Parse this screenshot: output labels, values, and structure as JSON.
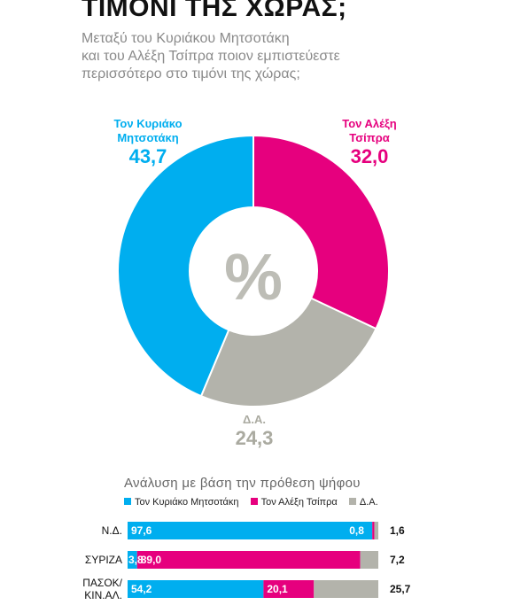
{
  "title": "ΤΙΜΟΝΙ ΤΗΣ ΧΩΡΑΣ;",
  "subtitle_lines": [
    "Μεταξύ του Κυριάκου Μητσοτάκη",
    "και του Αλέξη Τσίπρα ποιον εμπιστεύεστε",
    "περισσότερο στο τιμόνι της χώρας;"
  ],
  "donut": {
    "center_symbol": "%",
    "labels": {
      "k_line1": "Τον Κυριάκο",
      "k_line2": "Μητσοτάκη",
      "k_value": "43,7",
      "a_line1": "Τον Αλέξη",
      "a_line2": "Τσίπρα",
      "a_value": "32,0",
      "d_line1": "Δ.Α.",
      "d_value": "24,3"
    }
  },
  "breakdown": {
    "title": "Ανάλυση με βάση την πρόθεση ψήφου",
    "legend": [
      "Τον Κυριάκο Μητσοτάκη",
      "Τον Αλέξη Τσίπρα",
      "Δ.Α."
    ]
  },
  "colors": {
    "kyriakos": "#00aeef",
    "alexis": "#e6007e",
    "da": "#b3b3ab"
  },
  "chart_data": [
    {
      "type": "pie",
      "categories": [
        "Τον Κυριάκο Μητσοτάκη",
        "Τον Αλέξη Τσίπρα",
        "Δ.Α."
      ],
      "values": [
        43.7,
        32.0,
        24.3
      ],
      "value_labels": [
        "43,7",
        "32,0",
        "24,3"
      ]
    },
    {
      "type": "bar",
      "stacked": true,
      "orientation": "horizontal",
      "categories": [
        "Ν.Δ.",
        "ΣΥΡΙΖΑ",
        "ΠΑΣΟΚ/ ΚΙΝ.ΑΛ."
      ],
      "category_lines": [
        [
          "Ν.Δ."
        ],
        [
          "ΣΥΡΙΖΑ"
        ],
        [
          "ΠΑΣΟΚ/",
          "ΚΙΝ.ΑΛ."
        ]
      ],
      "series": [
        {
          "name": "Τον Κυριάκο Μητσοτάκη",
          "values": [
            97.6,
            3.8,
            54.2
          ],
          "labels": [
            "97,6",
            "3,8",
            "54,2"
          ]
        },
        {
          "name": "Τον Αλέξη Τσίπρα",
          "values": [
            0.8,
            89.0,
            20.1
          ],
          "labels": [
            "0,8",
            "89,0",
            "20,1"
          ]
        },
        {
          "name": "Δ.Α.",
          "values": [
            1.6,
            7.2,
            25.7
          ],
          "labels": [
            "1,6",
            "7,2",
            "25,7"
          ]
        }
      ]
    }
  ]
}
